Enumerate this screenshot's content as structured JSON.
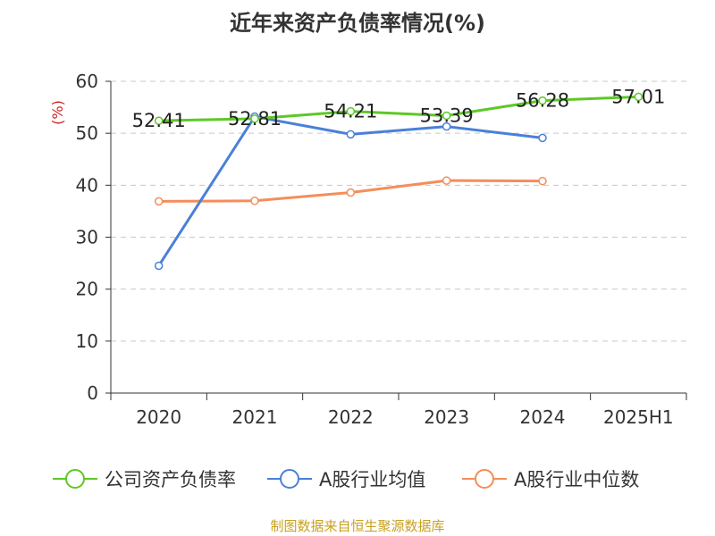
{
  "title": "近年来资产负债率情况(%)",
  "source": "制图数据来自恒生聚源数据库",
  "chart_data": {
    "type": "line",
    "ylabel": "(%)",
    "ylim": [
      0,
      60
    ],
    "yticks": [
      0,
      10,
      20,
      30,
      40,
      50,
      60
    ],
    "categories": [
      "2020",
      "2021",
      "2022",
      "2023",
      "2024",
      "2025H1"
    ],
    "grid": true,
    "legend_position": "bottom",
    "series": [
      {
        "name": "公司资产负债率",
        "color": "#5cc926",
        "values": [
          52.41,
          52.81,
          54.21,
          53.39,
          56.28,
          57.01
        ],
        "labels": [
          "52.41",
          "52.81",
          "54.21",
          "53.39",
          "56.28",
          "57.01"
        ]
      },
      {
        "name": "A股行业均值",
        "color": "#4a80d8",
        "values": [
          24.5,
          53.2,
          49.8,
          51.3,
          49.1,
          null
        ]
      },
      {
        "name": "A股行业中位数",
        "color": "#f58d5a",
        "values": [
          36.9,
          37.0,
          38.6,
          40.9,
          40.8,
          null
        ]
      }
    ]
  }
}
